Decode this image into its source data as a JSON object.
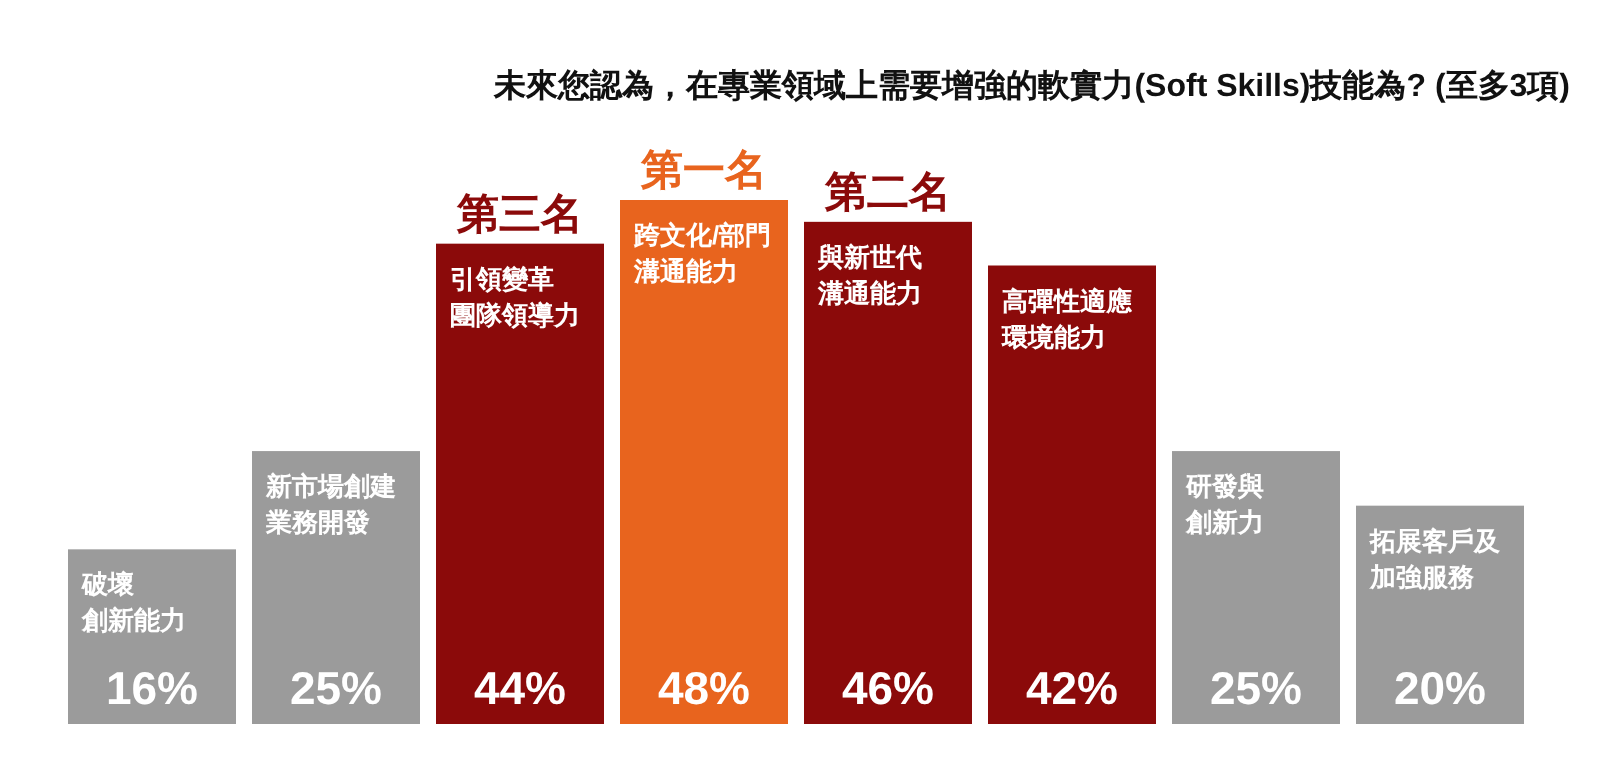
{
  "chart_data": {
    "type": "bar",
    "title": "未來您認為，在專業領域上需要增強的軟實力(Soft Skills)技能為? (至多3項)",
    "categories": [
      "破壞創新能力",
      "新市場創建業務開發",
      "引領變革團隊領導力",
      "跨文化/部門溝通能力",
      "與新世代溝通能力",
      "高彈性適應環境能力",
      "研發與創新力",
      "拓展客戶及加強服務"
    ],
    "values": [
      16,
      25,
      44,
      48,
      46,
      42,
      25,
      20
    ],
    "value_labels": [
      "16%",
      "25%",
      "44%",
      "48%",
      "46%",
      "42%",
      "25%",
      "20%"
    ],
    "colors": [
      "#9b9b9b",
      "#9b9b9b",
      "#8b0a0a",
      "#e8641e",
      "#8b0a0a",
      "#8b0a0a",
      "#9b9b9b",
      "#9b9b9b"
    ],
    "annotations": [
      {
        "text": "第三名",
        "x": "引領變革團隊領導力",
        "y": 44
      },
      {
        "text": "第一名",
        "x": "跨文化/部門溝通能力",
        "y": 48
      },
      {
        "text": "第二名",
        "x": "與新世代溝通能力",
        "y": 46
      }
    ]
  }
}
